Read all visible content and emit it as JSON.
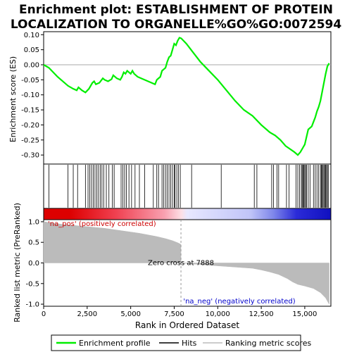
{
  "chart_data": {
    "type": "line",
    "title_line1": "Enrichment plot: ESTABLISHMENT OF PROTEIN",
    "title_line2": "LOCALIZATION TO ORGANELLE%GO%GO:0072594",
    "es_panel": {
      "ylabel": "Enrichment score (ES)",
      "ylim": [
        -0.33,
        0.11
      ],
      "yticks": [
        -0.3,
        -0.25,
        -0.2,
        -0.15,
        -0.1,
        -0.05,
        0.0,
        0.05,
        0.1
      ],
      "ytick_labels": [
        "-0.30",
        "-0.25",
        "-0.20",
        "-0.15",
        "-0.10",
        "-0.05",
        "0.00",
        "0.05",
        "0.10"
      ],
      "series": [
        {
          "name": "Enrichment profile",
          "color": "#00ee00",
          "x": [
            0,
            300,
            800,
            1400,
            1700,
            1900,
            2000,
            2200,
            2400,
            2600,
            2800,
            2900,
            3000,
            3200,
            3400,
            3500,
            3700,
            3900,
            4000,
            4100,
            4200,
            4400,
            4500,
            4600,
            4700,
            4800,
            4900,
            5000,
            5100,
            5200,
            5400,
            5600,
            5800,
            6000,
            6200,
            6400,
            6500,
            6600,
            6700,
            6800,
            6900,
            7000,
            7100,
            7200,
            7300,
            7400,
            7500,
            7600,
            7700,
            7800,
            7900,
            8200,
            8600,
            9000,
            9500,
            10000,
            10500,
            11000,
            11500,
            12000,
            12500,
            13000,
            13300,
            13600,
            13900,
            14100,
            14400,
            14600,
            14750,
            14900,
            15000,
            15100,
            15200,
            15400,
            15500,
            15600,
            15700,
            15800,
            15900,
            16000,
            16100,
            16200,
            16300,
            16400
          ],
          "y": [
            0.0,
            -0.01,
            -0.04,
            -0.07,
            -0.08,
            -0.085,
            -0.075,
            -0.085,
            -0.092,
            -0.08,
            -0.06,
            -0.055,
            -0.065,
            -0.06,
            -0.045,
            -0.05,
            -0.055,
            -0.048,
            -0.035,
            -0.04,
            -0.045,
            -0.05,
            -0.04,
            -0.025,
            -0.03,
            -0.02,
            -0.025,
            -0.03,
            -0.02,
            -0.03,
            -0.04,
            -0.045,
            -0.05,
            -0.055,
            -0.06,
            -0.065,
            -0.05,
            -0.045,
            -0.04,
            -0.02,
            -0.015,
            -0.01,
            0.01,
            0.025,
            0.03,
            0.05,
            0.07,
            0.065,
            0.08,
            0.09,
            0.088,
            0.07,
            0.04,
            0.01,
            -0.02,
            -0.05,
            -0.085,
            -0.12,
            -0.15,
            -0.17,
            -0.2,
            -0.225,
            -0.235,
            -0.25,
            -0.27,
            -0.278,
            -0.29,
            -0.3,
            -0.29,
            -0.275,
            -0.265,
            -0.24,
            -0.215,
            -0.205,
            -0.19,
            -0.175,
            -0.155,
            -0.14,
            -0.12,
            -0.09,
            -0.06,
            -0.03,
            -0.005,
            0.005
          ]
        }
      ]
    },
    "hits": {
      "name": "Hits",
      "positions": [
        300,
        1400,
        1700,
        1950,
        2400,
        2550,
        2650,
        2750,
        2850,
        2950,
        3050,
        3150,
        3250,
        3350,
        3450,
        3600,
        3750,
        3950,
        4050,
        4450,
        4550,
        4650,
        4750,
        4900,
        5050,
        5250,
        5500,
        5800,
        6300,
        6500,
        6600,
        6800,
        6900,
        7000,
        7100,
        7200,
        7300,
        7400,
        7500,
        7550,
        7650,
        7750,
        7850,
        8500,
        10200,
        12100,
        12250,
        13100,
        13200,
        13400,
        13500,
        13950,
        14100,
        14500,
        14600,
        14700,
        14800,
        14850,
        14900,
        14950,
        15000,
        15050,
        15100,
        15200,
        15300,
        15500,
        15600,
        15700,
        15800,
        15900,
        15950,
        16000,
        16050,
        16100,
        16150,
        16200,
        16250,
        16300,
        16350
      ]
    },
    "ranking_panel": {
      "ylabel": "Ranked list metric (PreRanked)",
      "xlabel": "Rank in Ordered Dataset",
      "ylim": [
        -1.05,
        1.05
      ],
      "yticks": [
        -1.0,
        -0.5,
        0.0,
        0.5,
        1.0
      ],
      "ytick_labels": [
        "-1.0",
        "-0.5",
        "0.0",
        "0.5",
        "1.0"
      ],
      "x": [
        0,
        500,
        1000,
        1500,
        2000,
        2500,
        3000,
        3500,
        4000,
        4500,
        5000,
        5500,
        6000,
        6500,
        7000,
        7400,
        7700,
        7887,
        7888,
        9000,
        10000,
        11000,
        12000,
        12500,
        13000,
        13500,
        14000,
        14300,
        14600,
        15000,
        15500,
        15900,
        16200,
        16400
      ],
      "values": [
        1.0,
        0.97,
        0.94,
        0.92,
        0.9,
        0.88,
        0.86,
        0.84,
        0.81,
        0.78,
        0.75,
        0.72,
        0.68,
        0.64,
        0.59,
        0.54,
        0.49,
        0.45,
        0.0,
        -0.04,
        -0.07,
        -0.1,
        -0.13,
        -0.17,
        -0.22,
        -0.28,
        -0.38,
        -0.46,
        -0.52,
        -0.56,
        -0.62,
        -0.72,
        -0.85,
        -1.0
      ],
      "zero_cross_label": "Zero cross at 7888",
      "zero_cross": 7888,
      "pos_label": "'na_pos' (positively correlated)",
      "neg_label": "'na_neg' (negatively correlated)",
      "pos_color": "#cc0000",
      "neg_color": "#0000cc"
    },
    "x_axis": {
      "xlim": [
        0,
        16500
      ],
      "xticks": [
        0,
        2500,
        5000,
        7500,
        10000,
        12500,
        15000
      ],
      "xtick_labels": [
        "0",
        "2,500",
        "5,000",
        "7,500",
        "10,000",
        "12,500",
        "15,000"
      ]
    },
    "legend": {
      "placement": "bottom",
      "entries": [
        {
          "label": "Enrichment profile",
          "color": "#00ee00"
        },
        {
          "label": "Hits",
          "color": "#000000"
        },
        {
          "label": "Ranking metric scores",
          "color": "#bbbbbb"
        }
      ]
    }
  }
}
